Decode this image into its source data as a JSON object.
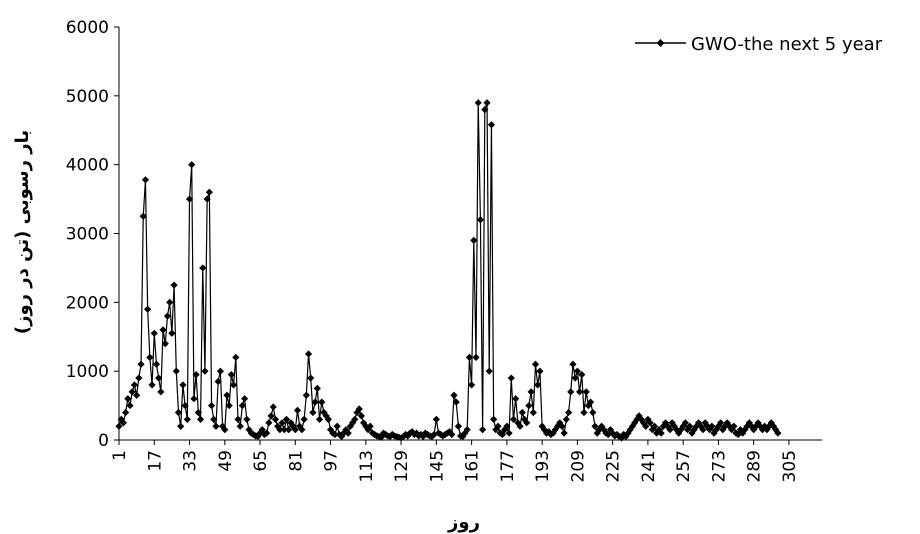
{
  "chart_data": {
    "type": "line",
    "xlabel": "روز",
    "ylabel": "بار رسوبی (تن در روز)",
    "ylim": [
      0,
      6000
    ],
    "xlim": [
      1,
      320
    ],
    "yticks": [
      0,
      1000,
      2000,
      3000,
      4000,
      5000,
      6000
    ],
    "xticks": [
      1,
      17,
      33,
      49,
      65,
      81,
      97,
      113,
      129,
      145,
      161,
      177,
      193,
      209,
      225,
      241,
      257,
      273,
      289,
      305
    ],
    "grid": false,
    "legend_position": "top-right",
    "series": [
      {
        "name": "GWO-the next 5 year",
        "color": "#000000",
        "marker": "diamond",
        "points": [
          [
            1,
            200
          ],
          [
            2,
            300
          ],
          [
            3,
            250
          ],
          [
            4,
            400
          ],
          [
            5,
            600
          ],
          [
            6,
            500
          ],
          [
            7,
            700
          ],
          [
            8,
            800
          ],
          [
            9,
            650
          ],
          [
            10,
            900
          ],
          [
            11,
            1100
          ],
          [
            12,
            3250
          ],
          [
            13,
            3780
          ],
          [
            14,
            1900
          ],
          [
            15,
            1200
          ],
          [
            16,
            800
          ],
          [
            17,
            1550
          ],
          [
            18,
            1100
          ],
          [
            19,
            900
          ],
          [
            20,
            700
          ],
          [
            21,
            1600
          ],
          [
            22,
            1400
          ],
          [
            23,
            1800
          ],
          [
            24,
            2000
          ],
          [
            25,
            1550
          ],
          [
            26,
            2250
          ],
          [
            27,
            1000
          ],
          [
            28,
            400
          ],
          [
            29,
            200
          ],
          [
            30,
            800
          ],
          [
            31,
            500
          ],
          [
            32,
            300
          ],
          [
            33,
            3500
          ],
          [
            34,
            4000
          ],
          [
            35,
            600
          ],
          [
            36,
            950
          ],
          [
            37,
            400
          ],
          [
            38,
            300
          ],
          [
            39,
            2500
          ],
          [
            40,
            1000
          ],
          [
            41,
            3500
          ],
          [
            42,
            3600
          ],
          [
            43,
            500
          ],
          [
            44,
            300
          ],
          [
            45,
            200
          ],
          [
            46,
            850
          ],
          [
            47,
            1000
          ],
          [
            48,
            200
          ],
          [
            49,
            150
          ],
          [
            50,
            650
          ],
          [
            51,
            500
          ],
          [
            52,
            950
          ],
          [
            53,
            800
          ],
          [
            54,
            1200
          ],
          [
            55,
            300
          ],
          [
            56,
            200
          ],
          [
            57,
            500
          ],
          [
            58,
            600
          ],
          [
            59,
            300
          ],
          [
            60,
            150
          ],
          [
            61,
            100
          ],
          [
            62,
            80
          ],
          [
            63,
            60
          ],
          [
            64,
            50
          ],
          [
            65,
            100
          ],
          [
            66,
            150
          ],
          [
            67,
            80
          ],
          [
            68,
            100
          ],
          [
            69,
            250
          ],
          [
            70,
            350
          ],
          [
            71,
            480
          ],
          [
            72,
            300
          ],
          [
            73,
            200
          ],
          [
            74,
            150
          ],
          [
            75,
            250
          ],
          [
            76,
            150
          ],
          [
            77,
            300
          ],
          [
            78,
            150
          ],
          [
            79,
            250
          ],
          [
            80,
            200
          ],
          [
            81,
            150
          ],
          [
            82,
            430
          ],
          [
            83,
            200
          ],
          [
            84,
            150
          ],
          [
            85,
            300
          ],
          [
            86,
            650
          ],
          [
            87,
            1250
          ],
          [
            88,
            900
          ],
          [
            89,
            400
          ],
          [
            90,
            550
          ],
          [
            91,
            750
          ],
          [
            92,
            300
          ],
          [
            93,
            550
          ],
          [
            94,
            400
          ],
          [
            95,
            350
          ],
          [
            96,
            300
          ],
          [
            97,
            150
          ],
          [
            98,
            100
          ],
          [
            99,
            80
          ],
          [
            100,
            200
          ],
          [
            101,
            80
          ],
          [
            102,
            50
          ],
          [
            103,
            100
          ],
          [
            104,
            150
          ],
          [
            105,
            100
          ],
          [
            106,
            200
          ],
          [
            107,
            250
          ],
          [
            108,
            300
          ],
          [
            109,
            400
          ],
          [
            110,
            450
          ],
          [
            111,
            350
          ],
          [
            112,
            250
          ],
          [
            113,
            200
          ],
          [
            114,
            150
          ],
          [
            115,
            200
          ],
          [
            116,
            100
          ],
          [
            117,
            80
          ],
          [
            118,
            60
          ],
          [
            119,
            50
          ],
          [
            120,
            40
          ],
          [
            121,
            100
          ],
          [
            122,
            80
          ],
          [
            123,
            60
          ],
          [
            124,
            50
          ],
          [
            125,
            80
          ],
          [
            126,
            60
          ],
          [
            127,
            50
          ],
          [
            128,
            40
          ],
          [
            129,
            30
          ],
          [
            130,
            50
          ],
          [
            131,
            80
          ],
          [
            132,
            60
          ],
          [
            133,
            100
          ],
          [
            134,
            120
          ],
          [
            135,
            80
          ],
          [
            136,
            100
          ],
          [
            137,
            60
          ],
          [
            138,
            80
          ],
          [
            139,
            50
          ],
          [
            140,
            100
          ],
          [
            141,
            80
          ],
          [
            142,
            60
          ],
          [
            143,
            50
          ],
          [
            144,
            80
          ],
          [
            145,
            300
          ],
          [
            146,
            100
          ],
          [
            147,
            80
          ],
          [
            148,
            60
          ],
          [
            149,
            80
          ],
          [
            150,
            100
          ],
          [
            151,
            120
          ],
          [
            152,
            80
          ],
          [
            153,
            650
          ],
          [
            154,
            550
          ],
          [
            155,
            200
          ],
          [
            156,
            60
          ],
          [
            157,
            50
          ],
          [
            158,
            100
          ],
          [
            159,
            150
          ],
          [
            160,
            1200
          ],
          [
            161,
            800
          ],
          [
            162,
            2900
          ],
          [
            163,
            1200
          ],
          [
            164,
            4900
          ],
          [
            165,
            3200
          ],
          [
            166,
            150
          ],
          [
            167,
            4800
          ],
          [
            168,
            4900
          ],
          [
            169,
            1000
          ],
          [
            170,
            4580
          ],
          [
            171,
            300
          ],
          [
            172,
            150
          ],
          [
            173,
            200
          ],
          [
            174,
            100
          ],
          [
            175,
            80
          ],
          [
            176,
            150
          ],
          [
            177,
            200
          ],
          [
            178,
            100
          ],
          [
            179,
            900
          ],
          [
            180,
            300
          ],
          [
            181,
            600
          ],
          [
            182,
            250
          ],
          [
            183,
            200
          ],
          [
            184,
            400
          ],
          [
            185,
            300
          ],
          [
            186,
            250
          ],
          [
            187,
            500
          ],
          [
            188,
            700
          ],
          [
            189,
            400
          ],
          [
            190,
            1100
          ],
          [
            191,
            800
          ],
          [
            192,
            1000
          ],
          [
            193,
            200
          ],
          [
            194,
            150
          ],
          [
            195,
            100
          ],
          [
            196,
            120
          ],
          [
            197,
            80
          ],
          [
            198,
            100
          ],
          [
            199,
            150
          ],
          [
            200,
            200
          ],
          [
            201,
            250
          ],
          [
            202,
            200
          ],
          [
            203,
            100
          ],
          [
            204,
            300
          ],
          [
            205,
            400
          ],
          [
            206,
            700
          ],
          [
            207,
            1100
          ],
          [
            208,
            900
          ],
          [
            209,
            1000
          ],
          [
            210,
            700
          ],
          [
            211,
            950
          ],
          [
            212,
            400
          ],
          [
            213,
            700
          ],
          [
            214,
            500
          ],
          [
            215,
            550
          ],
          [
            216,
            400
          ],
          [
            217,
            200
          ],
          [
            218,
            100
          ],
          [
            219,
            150
          ],
          [
            220,
            200
          ],
          [
            221,
            150
          ],
          [
            222,
            100
          ],
          [
            223,
            80
          ],
          [
            224,
            150
          ],
          [
            225,
            100
          ],
          [
            226,
            60
          ],
          [
            227,
            80
          ],
          [
            228,
            50
          ],
          [
            229,
            30
          ],
          [
            230,
            80
          ],
          [
            231,
            50
          ],
          [
            232,
            100
          ],
          [
            233,
            150
          ],
          [
            234,
            200
          ],
          [
            235,
            250
          ],
          [
            236,
            300
          ],
          [
            237,
            350
          ],
          [
            238,
            300
          ],
          [
            239,
            250
          ],
          [
            240,
            200
          ],
          [
            241,
            300
          ],
          [
            242,
            250
          ],
          [
            243,
            150
          ],
          [
            244,
            200
          ],
          [
            245,
            100
          ],
          [
            246,
            150
          ],
          [
            247,
            100
          ],
          [
            248,
            200
          ],
          [
            249,
            250
          ],
          [
            250,
            200
          ],
          [
            251,
            150
          ],
          [
            252,
            250
          ],
          [
            253,
            200
          ],
          [
            254,
            150
          ],
          [
            255,
            100
          ],
          [
            256,
            150
          ],
          [
            257,
            200
          ],
          [
            258,
            250
          ],
          [
            259,
            150
          ],
          [
            260,
            200
          ],
          [
            261,
            100
          ],
          [
            262,
            150
          ],
          [
            263,
            200
          ],
          [
            264,
            250
          ],
          [
            265,
            200
          ],
          [
            266,
            150
          ],
          [
            267,
            250
          ],
          [
            268,
            200
          ],
          [
            269,
            150
          ],
          [
            270,
            200
          ],
          [
            271,
            100
          ],
          [
            272,
            150
          ],
          [
            273,
            200
          ],
          [
            274,
            250
          ],
          [
            275,
            150
          ],
          [
            276,
            200
          ],
          [
            277,
            250
          ],
          [
            278,
            200
          ],
          [
            279,
            150
          ],
          [
            280,
            200
          ],
          [
            281,
            100
          ],
          [
            282,
            80
          ],
          [
            283,
            150
          ],
          [
            284,
            100
          ],
          [
            285,
            150
          ],
          [
            286,
            200
          ],
          [
            287,
            250
          ],
          [
            288,
            200
          ],
          [
            289,
            150
          ],
          [
            290,
            200
          ],
          [
            291,
            250
          ],
          [
            292,
            200
          ],
          [
            293,
            150
          ],
          [
            294,
            200
          ],
          [
            295,
            150
          ],
          [
            296,
            200
          ],
          [
            297,
            250
          ],
          [
            298,
            200
          ],
          [
            299,
            150
          ],
          [
            300,
            100
          ]
        ]
      }
    ]
  }
}
